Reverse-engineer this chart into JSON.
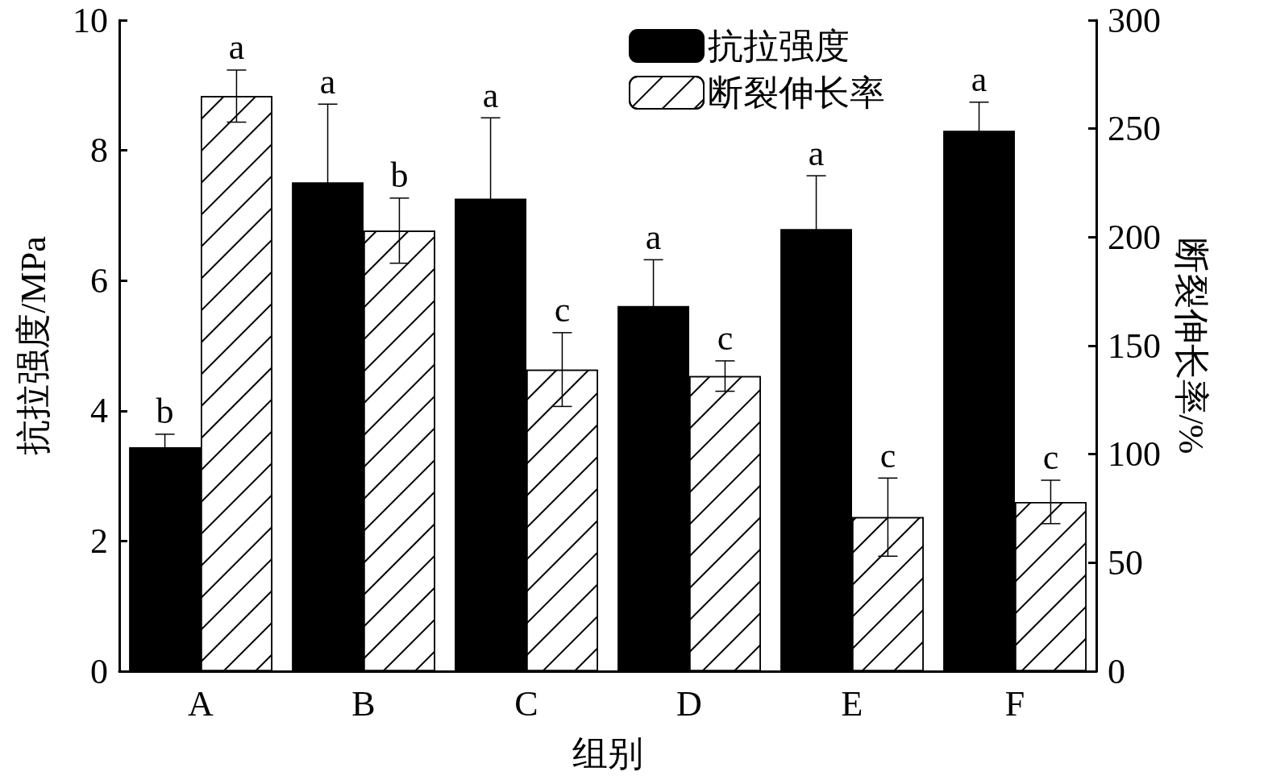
{
  "chart_data": {
    "type": "bar",
    "xlabel": "组别",
    "ylabel": "抗拉强度/MPa",
    "y2label": "断裂伸长率/%",
    "categories": [
      "A",
      "B",
      "C",
      "D",
      "E",
      "F"
    ],
    "series": [
      {
        "name": "抗拉强度",
        "color": "#000000",
        "values": [
          3.44,
          7.51,
          7.26,
          5.61,
          6.79,
          8.3
        ],
        "errors": [
          0.2,
          1.2,
          1.24,
          0.71,
          0.82,
          0.44
        ],
        "value_labels": [
          "b",
          "a",
          "a",
          "a",
          "a",
          "a"
        ]
      },
      {
        "name": "断裂伸长率",
        "color": "#ffffff",
        "axis": "y2",
        "values": [
          265,
          203,
          139,
          136,
          71,
          78
        ],
        "errors": [
          12,
          15,
          17,
          7,
          18,
          10
        ],
        "value_labels": [
          "a",
          "b",
          "c",
          "c",
          "c",
          "c"
        ]
      }
    ],
    "ylim": [
      0,
      10
    ],
    "yticks": [
      0,
      2,
      4,
      6,
      8,
      10
    ],
    "y2lim": [
      0,
      300
    ],
    "y2ticks": [
      0,
      50,
      100,
      150,
      200,
      250,
      300
    ],
    "legend": "top right",
    "grid": false
  }
}
